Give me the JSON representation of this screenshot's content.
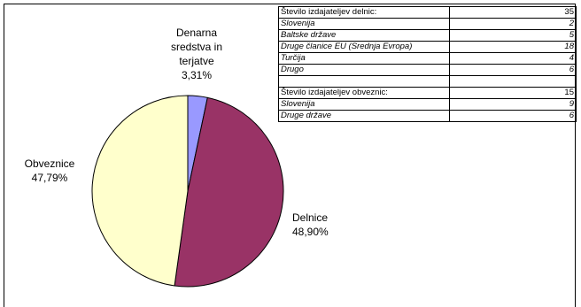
{
  "chart_data": {
    "type": "pie",
    "categories": [
      "Denarna sredstva in terjatve",
      "Delnice",
      "Obveznice"
    ],
    "values": [
      3.31,
      48.9,
      47.79
    ],
    "value_labels": [
      "3,31%",
      "48,90%",
      "47,79%"
    ],
    "colors": [
      "#9999ff",
      "#993366",
      "#ffffcc"
    ]
  },
  "table": {
    "sections": [
      {
        "rows": [
          [
            "Število izdajateljev delnic:",
            35
          ],
          [
            "Slovenija",
            2
          ],
          [
            "Baltske države",
            5
          ],
          [
            "Druge članice EU (Srednja Evropa)",
            18
          ],
          [
            "Turčija",
            4
          ],
          [
            "Drugo",
            6
          ]
        ]
      },
      {
        "rows": [
          [
            "Število izdajateljev obveznic:",
            15
          ],
          [
            "Slovenija",
            9
          ],
          [
            "Druge države",
            6
          ]
        ]
      }
    ]
  }
}
